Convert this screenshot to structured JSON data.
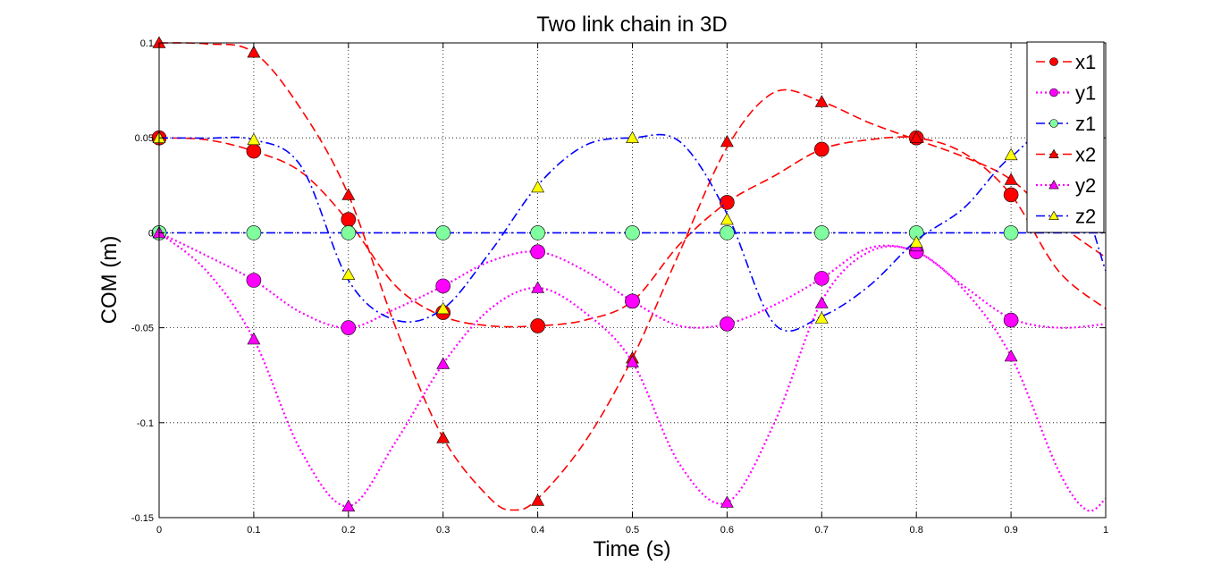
{
  "chart_data": {
    "type": "line",
    "title": "Two link chain in 3D",
    "xlabel": "Time (s)",
    "ylabel": "COM (m)",
    "xlim": [
      0,
      1
    ],
    "ylim": [
      -0.15,
      0.1
    ],
    "grid": true,
    "legend_position": "top-right",
    "x_ticks": [
      "0",
      "0.1",
      "0.2",
      "0.3",
      "0.4",
      "0.5",
      "0.6",
      "0.7",
      "0.8",
      "0.9",
      "1"
    ],
    "y_ticks": [
      "-0.15",
      "-0.1",
      "-0.05",
      "0",
      "0.05",
      "0.1"
    ],
    "series": [
      {
        "name": "x1",
        "color": "#ff0000",
        "line_style": "dashed",
        "marker": "circle",
        "marker_fill": "#ff0000",
        "curve_x": [
          0,
          0.05,
          0.1,
          0.15,
          0.2,
          0.25,
          0.3,
          0.35,
          0.4,
          0.45,
          0.5,
          0.55,
          0.6,
          0.65,
          0.7,
          0.75,
          0.8,
          0.85,
          0.9,
          0.95,
          1.0
        ],
        "curve_y": [
          0.05,
          0.049,
          0.043,
          0.032,
          0.006,
          -0.028,
          -0.044,
          -0.049,
          -0.049,
          -0.046,
          -0.036,
          -0.006,
          0.016,
          0.03,
          0.044,
          0.049,
          0.05,
          0.042,
          0.02,
          -0.02,
          -0.04
        ],
        "marker_x": [
          0,
          0.1,
          0.2,
          0.3,
          0.4,
          0.5,
          0.6,
          0.7,
          0.8,
          0.9
        ],
        "marker_y": [
          0.05,
          0.043,
          0.007,
          -0.042,
          -0.049,
          -0.036,
          0.016,
          0.044,
          0.05,
          0.02
        ]
      },
      {
        "name": "y1",
        "color": "#ff00ff",
        "line_style": "dotted",
        "marker": "circle",
        "marker_fill": "#ff00ff",
        "curve_x": [
          0,
          0.05,
          0.1,
          0.15,
          0.2,
          0.25,
          0.3,
          0.35,
          0.4,
          0.45,
          0.5,
          0.55,
          0.6,
          0.65,
          0.7,
          0.75,
          0.8,
          0.85,
          0.9,
          0.95,
          1.0
        ],
        "curve_y": [
          0,
          -0.012,
          -0.025,
          -0.042,
          -0.05,
          -0.04,
          -0.028,
          -0.015,
          -0.01,
          -0.02,
          -0.036,
          -0.049,
          -0.048,
          -0.038,
          -0.024,
          -0.008,
          -0.01,
          -0.028,
          -0.045,
          -0.05,
          -0.048
        ],
        "marker_x": [
          0,
          0.1,
          0.2,
          0.3,
          0.4,
          0.5,
          0.6,
          0.7,
          0.8,
          0.9
        ],
        "marker_y": [
          0,
          -0.025,
          -0.05,
          -0.028,
          -0.01,
          -0.036,
          -0.048,
          -0.024,
          -0.01,
          -0.046
        ]
      },
      {
        "name": "z1",
        "color": "#0000ff",
        "line_style": "dashdot",
        "marker": "circle",
        "marker_fill": "#80ff9f",
        "curve_x": [
          0,
          1.0
        ],
        "curve_y": [
          0,
          0
        ],
        "marker_x": [
          0,
          0.1,
          0.2,
          0.3,
          0.4,
          0.5,
          0.6,
          0.7,
          0.8,
          0.9
        ],
        "marker_y": [
          0,
          0,
          0,
          0,
          0,
          0,
          0,
          0,
          0,
          0
        ]
      },
      {
        "name": "x2",
        "color": "#ff0000",
        "line_style": "dashed",
        "marker": "triangle",
        "marker_fill": "#ff0000",
        "curve_x": [
          0,
          0.05,
          0.1,
          0.15,
          0.2,
          0.25,
          0.3,
          0.35,
          0.375,
          0.4,
          0.45,
          0.5,
          0.55,
          0.6,
          0.65,
          0.7,
          0.75,
          0.8,
          0.85,
          0.9,
          0.95,
          1.0
        ],
        "curve_y": [
          0.1,
          0.0995,
          0.095,
          0.065,
          0.02,
          -0.05,
          -0.108,
          -0.14,
          -0.146,
          -0.14,
          -0.11,
          -0.066,
          -0.01,
          0.045,
          0.074,
          0.069,
          0.058,
          0.049,
          0.04,
          0.028,
          0.005,
          -0.013
        ],
        "marker_x": [
          0,
          0.1,
          0.2,
          0.3,
          0.4,
          0.5,
          0.6,
          0.7,
          0.8,
          0.9
        ],
        "marker_y": [
          0.1,
          0.095,
          0.02,
          -0.108,
          -0.141,
          -0.066,
          0.048,
          0.069,
          0.05,
          0.028
        ]
      },
      {
        "name": "y2",
        "color": "#ff00ff",
        "line_style": "dotted",
        "marker": "triangle",
        "marker_fill": "#ff00ff",
        "curve_x": [
          0,
          0.05,
          0.1,
          0.15,
          0.2,
          0.25,
          0.3,
          0.35,
          0.4,
          0.45,
          0.5,
          0.55,
          0.6,
          0.65,
          0.7,
          0.75,
          0.8,
          0.85,
          0.9,
          0.95,
          0.98,
          1.0
        ],
        "curve_y": [
          0,
          -0.02,
          -0.056,
          -0.115,
          -0.144,
          -0.11,
          -0.069,
          -0.04,
          -0.029,
          -0.042,
          -0.068,
          -0.122,
          -0.142,
          -0.1,
          -0.036,
          -0.01,
          -0.01,
          -0.03,
          -0.065,
          -0.125,
          -0.146,
          -0.14
        ],
        "marker_x": [
          0,
          0.1,
          0.2,
          0.3,
          0.4,
          0.5,
          0.6,
          0.7,
          0.8,
          0.9
        ],
        "marker_y": [
          0,
          -0.056,
          -0.144,
          -0.069,
          -0.029,
          -0.068,
          -0.142,
          -0.037,
          -0.007,
          -0.065
        ]
      },
      {
        "name": "z2",
        "color": "#0000ff",
        "line_style": "dashdot",
        "marker": "triangle",
        "marker_fill": "#ffff00",
        "curve_x": [
          0,
          0.05,
          0.1,
          0.15,
          0.2,
          0.25,
          0.3,
          0.35,
          0.4,
          0.45,
          0.5,
          0.55,
          0.6,
          0.65,
          0.7,
          0.75,
          0.8,
          0.85,
          0.9,
          0.95,
          1.0
        ],
        "curve_y": [
          0.05,
          0.0498,
          0.049,
          0.035,
          -0.025,
          -0.046,
          -0.04,
          -0.01,
          0.025,
          0.046,
          0.05,
          0.048,
          0.01,
          -0.048,
          -0.044,
          -0.028,
          -0.004,
          0.013,
          0.04,
          0.05,
          -0.02
        ],
        "marker_x": [
          0,
          0.1,
          0.2,
          0.3,
          0.4,
          0.5,
          0.6,
          0.7,
          0.8,
          0.9
        ],
        "marker_y": [
          0.05,
          0.049,
          -0.022,
          -0.04,
          0.024,
          0.05,
          0.007,
          -0.045,
          -0.005,
          0.041
        ]
      }
    ]
  }
}
